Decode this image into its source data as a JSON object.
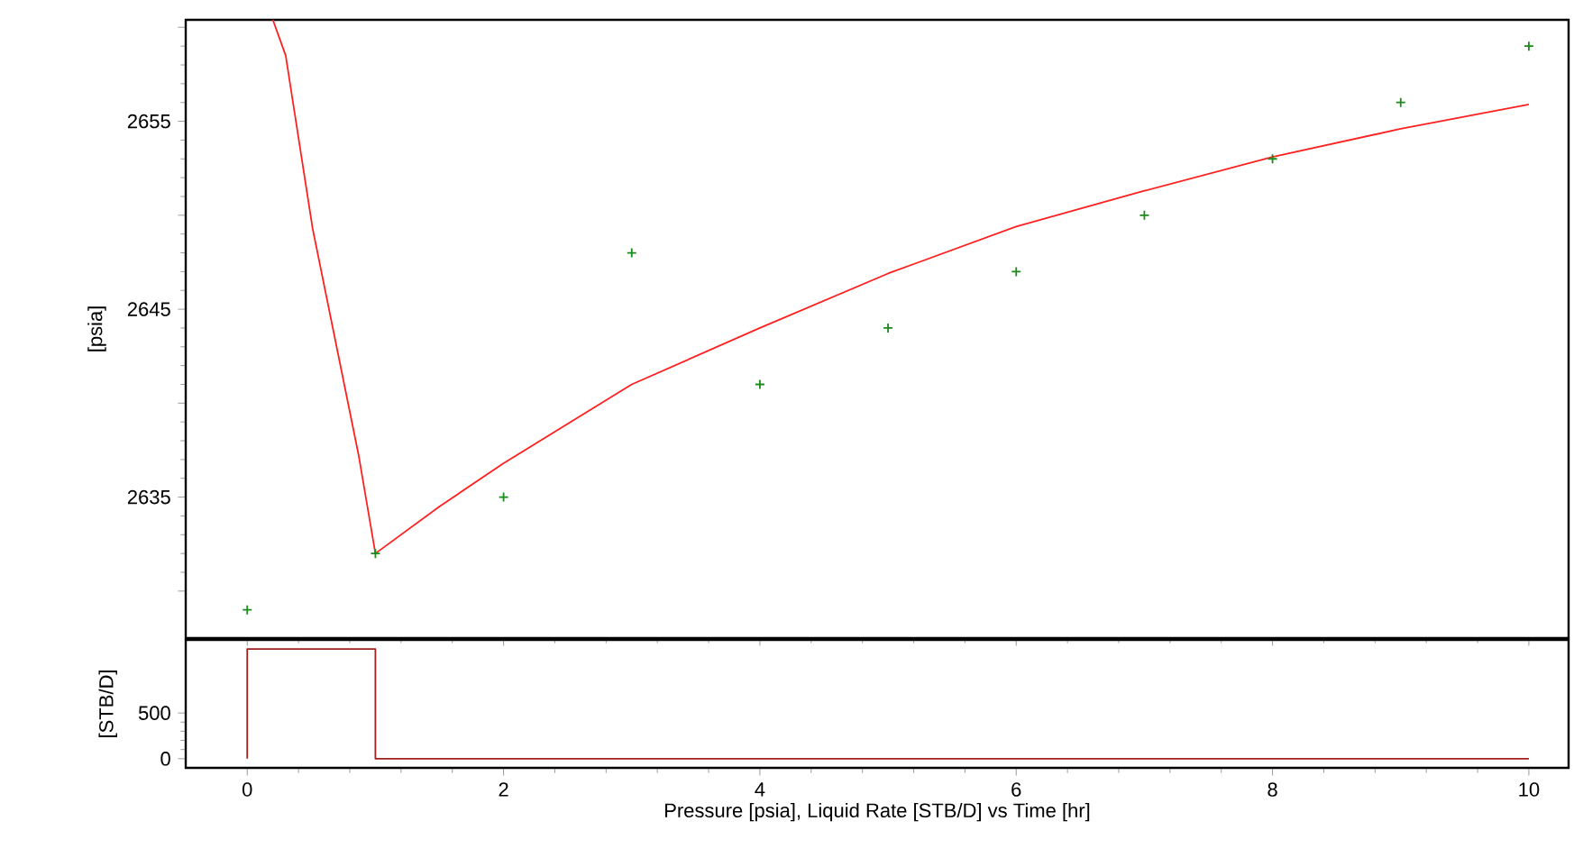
{
  "chart_data": [
    {
      "type": "scatter",
      "ylabel": "[psia]",
      "tick_labels": "y",
      "xlim": [
        -0.48,
        10.31
      ],
      "ylim": [
        2627.5,
        2660.4
      ],
      "yticks": [
        {
          "value": 2630,
          "label": null
        },
        2635,
        {
          "value": 2640,
          "label": null
        },
        2645,
        {
          "value": 2650,
          "label": null
        },
        2655,
        {
          "value": 2660,
          "label": null
        }
      ],
      "xticks": [
        0,
        2,
        4,
        6,
        8,
        10
      ],
      "grid": false,
      "legend": false,
      "series": [
        {
          "color": "#1a8c1a",
          "marker": "cross",
          "x": [
            0,
            1,
            2,
            3,
            4,
            5,
            6,
            7,
            8,
            9,
            10
          ],
          "values": [
            2629,
            2632,
            2635,
            2648,
            2641,
            2644,
            2647,
            2650,
            2653,
            2656,
            2659
          ]
        },
        {
          "type": "line",
          "color": "#ff2020",
          "marker": "none",
          "line_style": "solid",
          "x": [
            0.2,
            0.3,
            0.51,
            0.87,
            1.0,
            1.5,
            2,
            3,
            4,
            5,
            6,
            7,
            8,
            9,
            10
          ],
          "values": [
            2660.4,
            2658.5,
            2649.3,
            2637.2,
            2632.0,
            2634.5,
            2636.8,
            2641.0,
            2644.0,
            2646.9,
            2649.4,
            2651.3,
            2653.1,
            2654.6,
            2655.9
          ]
        }
      ]
    },
    {
      "type": "step",
      "ylabel": "[STB/D]",
      "xlabel": "Pressure [psia], Liquid Rate [STB/D] vs Time [hr]",
      "xlim": [
        -0.48,
        10.31
      ],
      "ylim": [
        -100,
        1300
      ],
      "yticks": [
        0,
        500
      ],
      "xticks": [
        0,
        2,
        4,
        6,
        8,
        10
      ],
      "grid": false,
      "legend": false,
      "series": [
        {
          "color": "#a02020",
          "x": [
            0,
            0,
            1,
            10
          ],
          "values": [
            0,
            1200,
            0,
            0
          ]
        }
      ]
    }
  ]
}
